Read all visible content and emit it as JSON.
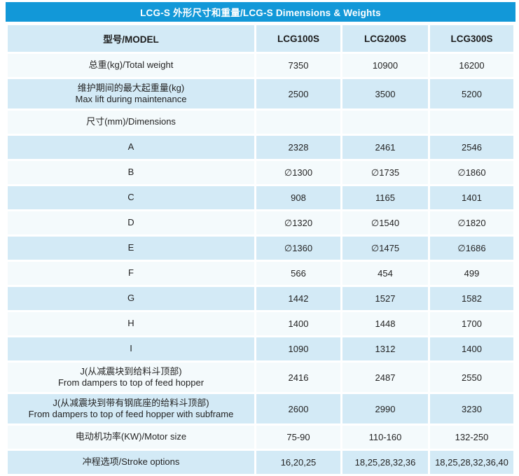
{
  "title": "LCG-S 外形尺寸和重量/LCG-S Dimensions & Weights",
  "colors": {
    "title_bar": "#1298d8",
    "title_text": "#ffffff",
    "row_blue": "#d3eaf6",
    "row_white": "#f4fafc",
    "text": "#232323"
  },
  "chart_data": {
    "type": "table",
    "title": "LCG-S 外形尺寸和重量/LCG-S Dimensions & Weights",
    "columns": [
      "型号/MODEL",
      "LCG100S",
      "LCG200S",
      "LCG300S"
    ],
    "rows": [
      {
        "label_zh": "总重(kg)/Total weight",
        "label_en": "",
        "values": [
          "7350",
          "10900",
          "16200"
        ]
      },
      {
        "label_zh": "维护期间的最大起重量(kg)",
        "label_en": "Max lift during maintenance",
        "values": [
          "2500",
          "3500",
          "5200"
        ]
      },
      {
        "label_zh": "尺寸(mm)/Dimensions",
        "label_en": "",
        "values": [
          "",
          "",
          ""
        ]
      },
      {
        "label_zh": "A",
        "label_en": "",
        "values": [
          "2328",
          "2461",
          "2546"
        ]
      },
      {
        "label_zh": "B",
        "label_en": "",
        "values": [
          "∅1300",
          "∅1735",
          "∅1860"
        ]
      },
      {
        "label_zh": "C",
        "label_en": "",
        "values": [
          "908",
          "1165",
          "1401"
        ]
      },
      {
        "label_zh": "D",
        "label_en": "",
        "values": [
          "∅1320",
          "∅1540",
          "∅1820"
        ]
      },
      {
        "label_zh": "E",
        "label_en": "",
        "values": [
          "∅1360",
          "∅1475",
          "∅1686"
        ]
      },
      {
        "label_zh": "F",
        "label_en": "",
        "values": [
          "566",
          "454",
          "499"
        ]
      },
      {
        "label_zh": "G",
        "label_en": "",
        "values": [
          "1442",
          "1527",
          "1582"
        ]
      },
      {
        "label_zh": "H",
        "label_en": "",
        "values": [
          "1400",
          "1448",
          "1700"
        ]
      },
      {
        "label_zh": "I",
        "label_en": "",
        "values": [
          "1090",
          "1312",
          "1400"
        ]
      },
      {
        "label_zh": "J(从减震块到给料斗顶部)",
        "label_en": "From dampers to top of feed hopper",
        "values": [
          "2416",
          "2487",
          "2550"
        ]
      },
      {
        "label_zh": "J(从减震块到带有钢底座的给料斗顶部)",
        "label_en": "From dampers to top of feed hopper with subframe",
        "values": [
          "2600",
          "2990",
          "3230"
        ]
      },
      {
        "label_zh": "电动机功率(KW)/Motor size",
        "label_en": "",
        "values": [
          "75-90",
          "110-160",
          "132-250"
        ]
      },
      {
        "label_zh": "冲程选项/Stroke options",
        "label_en": "",
        "values": [
          "16,20,25",
          "18,25,28,32,36",
          "18,25,28,32,36,40"
        ]
      }
    ]
  }
}
